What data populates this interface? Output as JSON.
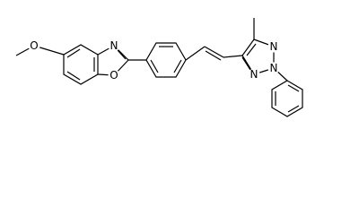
{
  "atoms": {
    "methoxy_oxygen": "O",
    "oxazole_nitrogen": "N",
    "oxazole_oxygen": "O",
    "triazole_n1": "N",
    "triazole_n2": "N",
    "triazole_n3": "N"
  }
}
